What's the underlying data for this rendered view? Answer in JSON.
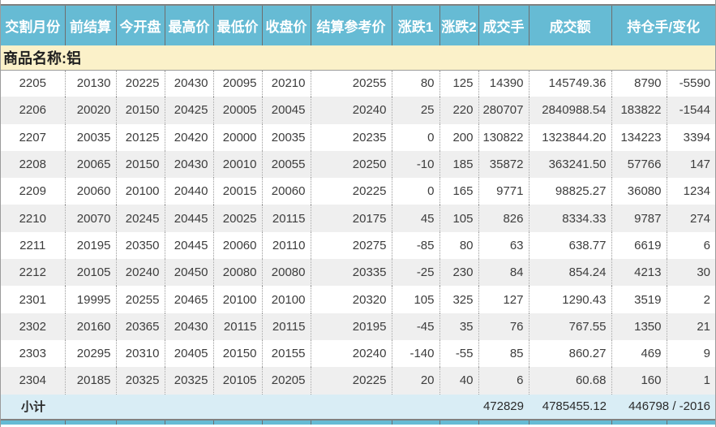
{
  "table": {
    "headers": [
      "交割月份",
      "前结算",
      "今开盘",
      "最高价",
      "最低价",
      "收盘价",
      "结算参考价",
      "涨跌1",
      "涨跌2",
      "成交手",
      "成交额",
      "持仓手/变化"
    ],
    "product_label": "商品名称:铝",
    "column_keys": [
      "delivery-month",
      "prev-settlement",
      "open",
      "high",
      "low",
      "close",
      "settlement-ref",
      "change1",
      "change2",
      "volume",
      "turnover",
      "open-interest",
      "oi-change"
    ],
    "rows": [
      [
        "2205",
        "20130",
        "20225",
        "20430",
        "20095",
        "20210",
        "20255",
        "80",
        "125",
        "14390",
        "145749.36",
        "8790",
        "-5590"
      ],
      [
        "2206",
        "20020",
        "20150",
        "20425",
        "20005",
        "20045",
        "20240",
        "25",
        "220",
        "280707",
        "2840988.54",
        "183822",
        "-1544"
      ],
      [
        "2207",
        "20035",
        "20125",
        "20420",
        "20000",
        "20035",
        "20235",
        "0",
        "200",
        "130822",
        "1323844.20",
        "134223",
        "3394"
      ],
      [
        "2208",
        "20065",
        "20150",
        "20430",
        "20010",
        "20055",
        "20250",
        "-10",
        "185",
        "35872",
        "363241.50",
        "57766",
        "147"
      ],
      [
        "2209",
        "20060",
        "20100",
        "20440",
        "20015",
        "20060",
        "20225",
        "0",
        "165",
        "9771",
        "98825.27",
        "36080",
        "1234"
      ],
      [
        "2210",
        "20070",
        "20245",
        "20445",
        "20025",
        "20115",
        "20175",
        "45",
        "105",
        "826",
        "8334.33",
        "9787",
        "274"
      ],
      [
        "2211",
        "20195",
        "20350",
        "20445",
        "20060",
        "20110",
        "20275",
        "-85",
        "80",
        "63",
        "638.77",
        "6619",
        "6"
      ],
      [
        "2212",
        "20105",
        "20240",
        "20450",
        "20080",
        "20080",
        "20335",
        "-25",
        "230",
        "84",
        "854.24",
        "4213",
        "30"
      ],
      [
        "2301",
        "19995",
        "20255",
        "20465",
        "20100",
        "20100",
        "20320",
        "105",
        "325",
        "127",
        "1290.43",
        "3519",
        "2"
      ],
      [
        "2302",
        "20160",
        "20365",
        "20430",
        "20115",
        "20115",
        "20195",
        "-45",
        "35",
        "76",
        "767.55",
        "1350",
        "21"
      ],
      [
        "2303",
        "20295",
        "20310",
        "20405",
        "20150",
        "20155",
        "20240",
        "-140",
        "-55",
        "85",
        "860.27",
        "469",
        "9"
      ],
      [
        "2304",
        "20185",
        "20325",
        "20325",
        "20105",
        "20205",
        "20225",
        "20",
        "40",
        "6",
        "60.68",
        "160",
        "1"
      ]
    ],
    "subtotal": {
      "label": "小计",
      "volume": "472829",
      "turnover": "4785455.12",
      "open_interest_change": "446798 / -2016"
    }
  },
  "colors": {
    "header_bg": "#66BBD4",
    "product_row_bg": "#FBF1C9",
    "subtotal_bg": "#D9EDF5",
    "alt_row_bg": "#EFEFEF",
    "grid_dotted": "#9A9A9A",
    "header_divider": "#6E6E6E",
    "frame_line": "#808080",
    "text_color": "#3D3D3D",
    "header_text": "#FFFFFF"
  }
}
